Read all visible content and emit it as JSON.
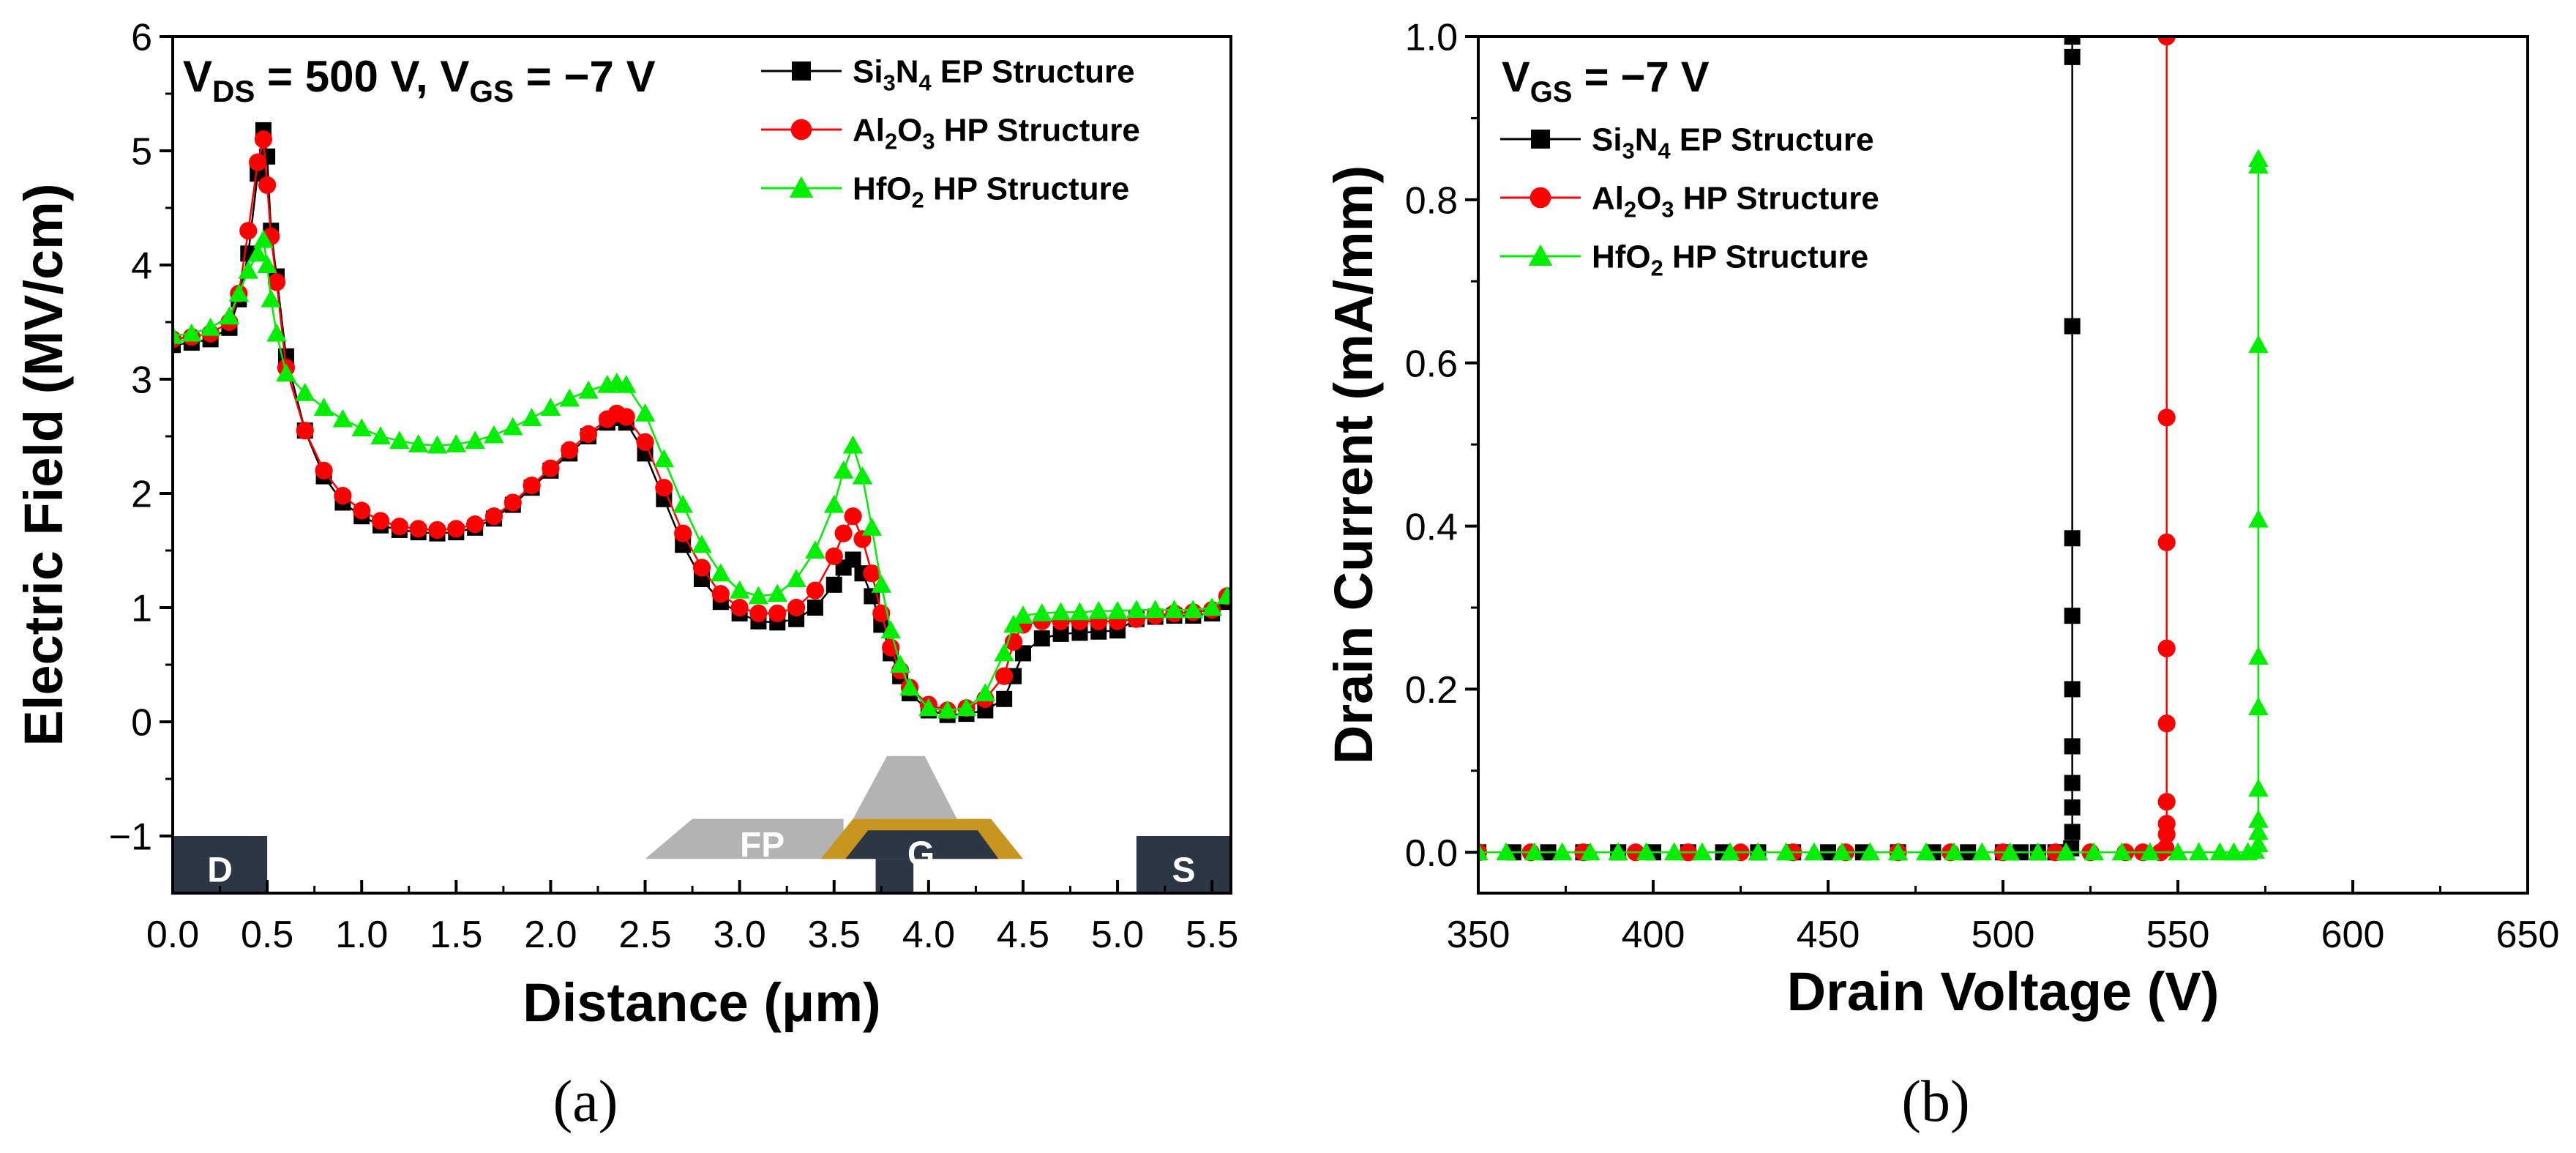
{
  "chart_data": [
    {
      "id": "a",
      "type": "scatter",
      "caption": "(a)",
      "title": "",
      "xlabel": "Distance (μm)",
      "ylabel": "Electric Field (MV/cm)",
      "xlim": [
        0,
        5.6
      ],
      "ylim": [
        -1.5,
        6
      ],
      "xticks": [
        0.0,
        0.5,
        1.0,
        1.5,
        2.0,
        2.5,
        3.0,
        3.5,
        4.0,
        4.5,
        5.0,
        5.5
      ],
      "xtick_labels": [
        "0.0",
        "0.5",
        "1.0",
        "1.5",
        "2.0",
        "2.5",
        "3.0",
        "3.5",
        "4.0",
        "4.5",
        "5.0",
        "5.5"
      ],
      "yticks": [
        -1,
        0,
        1,
        2,
        3,
        4,
        5,
        6
      ],
      "ytick_labels": [
        "−1",
        "0",
        "1",
        "2",
        "3",
        "4",
        "5",
        "6"
      ],
      "annotation": {
        "main": "V",
        "sub1": "DS",
        "mid": " = 500 V, V",
        "sub2": "GS",
        "tail": " = −7 V"
      },
      "structure_labels": {
        "drain": "D",
        "field_plate": "FP",
        "gate": "G",
        "source": "S"
      },
      "series": [
        {
          "name": "Si3N4 EP Structure",
          "legend": {
            "a": "Si",
            "sub1": "3",
            "b": "N",
            "sub2": "4",
            "c": " EP Structure"
          },
          "color": "#000000",
          "marker": "square",
          "x": [
            0.0,
            0.1,
            0.2,
            0.3,
            0.35,
            0.4,
            0.45,
            0.48,
            0.5,
            0.52,
            0.55,
            0.6,
            0.7,
            0.8,
            0.9,
            1.0,
            1.1,
            1.2,
            1.3,
            1.4,
            1.5,
            1.6,
            1.7,
            1.8,
            1.9,
            2.0,
            2.1,
            2.2,
            2.3,
            2.35,
            2.4,
            2.5,
            2.6,
            2.7,
            2.8,
            2.9,
            3.0,
            3.1,
            3.2,
            3.3,
            3.4,
            3.5,
            3.55,
            3.6,
            3.65,
            3.7,
            3.75,
            3.8,
            3.85,
            3.9,
            4.0,
            4.1,
            4.2,
            4.3,
            4.4,
            4.45,
            4.5,
            4.6,
            4.7,
            4.8,
            4.9,
            5.0,
            5.1,
            5.2,
            5.3,
            5.4,
            5.5,
            5.58
          ],
          "y": [
            3.3,
            3.32,
            3.35,
            3.45,
            3.7,
            4.1,
            4.8,
            5.18,
            4.95,
            4.3,
            3.9,
            3.2,
            2.55,
            2.15,
            1.92,
            1.8,
            1.72,
            1.68,
            1.66,
            1.65,
            1.66,
            1.7,
            1.78,
            1.9,
            2.05,
            2.2,
            2.35,
            2.5,
            2.62,
            2.66,
            2.62,
            2.35,
            1.95,
            1.55,
            1.25,
            1.05,
            0.95,
            0.88,
            0.87,
            0.9,
            1.0,
            1.2,
            1.35,
            1.42,
            1.3,
            1.1,
            0.85,
            0.6,
            0.4,
            0.25,
            0.1,
            0.06,
            0.07,
            0.1,
            0.2,
            0.4,
            0.6,
            0.73,
            0.77,
            0.78,
            0.79,
            0.8,
            0.9,
            0.92,
            0.93,
            0.93,
            0.95,
            1.05
          ]
        },
        {
          "name": "Al2O3 HP Structure",
          "legend": {
            "a": "Al",
            "sub1": "2",
            "b": "O",
            "sub2": "3",
            "c": " HP Structure"
          },
          "color": "#ff0000",
          "marker": "circle",
          "x": [
            0.0,
            0.1,
            0.2,
            0.3,
            0.35,
            0.4,
            0.45,
            0.48,
            0.5,
            0.52,
            0.55,
            0.6,
            0.7,
            0.8,
            0.9,
            1.0,
            1.1,
            1.2,
            1.3,
            1.4,
            1.5,
            1.6,
            1.7,
            1.8,
            1.9,
            2.0,
            2.1,
            2.2,
            2.3,
            2.35,
            2.4,
            2.5,
            2.6,
            2.7,
            2.8,
            2.9,
            3.0,
            3.1,
            3.2,
            3.3,
            3.4,
            3.5,
            3.55,
            3.6,
            3.65,
            3.7,
            3.75,
            3.8,
            3.85,
            3.9,
            4.0,
            4.1,
            4.2,
            4.3,
            4.4,
            4.45,
            4.5,
            4.6,
            4.7,
            4.8,
            4.9,
            5.0,
            5.1,
            5.2,
            5.3,
            5.4,
            5.5,
            5.58
          ],
          "y": [
            3.35,
            3.37,
            3.4,
            3.5,
            3.75,
            4.3,
            4.9,
            5.1,
            4.7,
            4.25,
            3.85,
            3.1,
            2.55,
            2.2,
            1.98,
            1.85,
            1.76,
            1.71,
            1.69,
            1.68,
            1.69,
            1.73,
            1.8,
            1.92,
            2.07,
            2.22,
            2.38,
            2.52,
            2.65,
            2.7,
            2.67,
            2.45,
            2.05,
            1.65,
            1.35,
            1.12,
            1.0,
            0.95,
            0.95,
            1.0,
            1.15,
            1.45,
            1.65,
            1.8,
            1.6,
            1.3,
            0.95,
            0.65,
            0.45,
            0.3,
            0.15,
            0.1,
            0.12,
            0.2,
            0.4,
            0.7,
            0.85,
            0.88,
            0.88,
            0.88,
            0.88,
            0.88,
            0.9,
            0.93,
            0.95,
            0.96,
            0.98,
            1.1
          ]
        },
        {
          "name": "HfO2 HP Structure",
          "legend": {
            "a": "HfO",
            "sub1": "2",
            "b": "",
            "sub2": "",
            "c": " HP Structure"
          },
          "color": "#00ee00",
          "marker": "triangle",
          "x": [
            0.0,
            0.1,
            0.2,
            0.3,
            0.35,
            0.4,
            0.45,
            0.48,
            0.5,
            0.52,
            0.55,
            0.6,
            0.7,
            0.8,
            0.9,
            1.0,
            1.1,
            1.2,
            1.3,
            1.4,
            1.5,
            1.6,
            1.7,
            1.8,
            1.9,
            2.0,
            2.1,
            2.2,
            2.3,
            2.35,
            2.4,
            2.5,
            2.6,
            2.7,
            2.8,
            2.9,
            3.0,
            3.1,
            3.2,
            3.3,
            3.4,
            3.5,
            3.55,
            3.6,
            3.65,
            3.7,
            3.75,
            3.8,
            3.85,
            3.9,
            4.0,
            4.1,
            4.2,
            4.3,
            4.4,
            4.45,
            4.5,
            4.6,
            4.7,
            4.8,
            4.9,
            5.0,
            5.1,
            5.2,
            5.3,
            5.4,
            5.5,
            5.58
          ],
          "y": [
            3.38,
            3.4,
            3.45,
            3.55,
            3.75,
            3.95,
            4.1,
            4.22,
            4.0,
            3.7,
            3.4,
            3.05,
            2.88,
            2.75,
            2.65,
            2.57,
            2.5,
            2.46,
            2.43,
            2.42,
            2.43,
            2.46,
            2.51,
            2.58,
            2.66,
            2.75,
            2.83,
            2.9,
            2.95,
            2.97,
            2.95,
            2.7,
            2.3,
            1.9,
            1.55,
            1.3,
            1.15,
            1.1,
            1.12,
            1.25,
            1.5,
            1.9,
            2.2,
            2.42,
            2.15,
            1.7,
            1.2,
            0.8,
            0.5,
            0.3,
            0.12,
            0.1,
            0.12,
            0.25,
            0.6,
            0.85,
            0.93,
            0.95,
            0.96,
            0.96,
            0.97,
            0.97,
            0.98,
            0.98,
            0.98,
            0.98,
            1.0,
            1.1
          ]
        }
      ]
    },
    {
      "id": "b",
      "type": "scatter",
      "caption": "(b)",
      "title": "",
      "xlabel": "Drain Voltage (V)",
      "ylabel": "Drain Current (mA/mm)",
      "xlim": [
        350,
        650
      ],
      "ylim": [
        -0.05,
        1.0
      ],
      "xticks": [
        350,
        400,
        450,
        500,
        550,
        600,
        650
      ],
      "xtick_labels": [
        "350",
        "400",
        "450",
        "500",
        "550",
        "600",
        "650"
      ],
      "yticks": [
        0.0,
        0.2,
        0.4,
        0.6,
        0.8,
        1.0
      ],
      "ytick_labels": [
        "0.0",
        "0.2",
        "0.4",
        "0.6",
        "0.8",
        "1.0"
      ],
      "annotation": {
        "main": "V",
        "sub1": "GS",
        "mid": " = −7 V",
        "sub2": "",
        "tail": ""
      },
      "series": [
        {
          "name": "Si3N4 EP Structure",
          "legend": {
            "a": "Si",
            "sub1": "3",
            "b": "N",
            "sub2": "4",
            "c": " EP Structure"
          },
          "color": "#000000",
          "marker": "square",
          "x": [
            350,
            360,
            370,
            380,
            390,
            400,
            410,
            420,
            430,
            440,
            450,
            460,
            470,
            480,
            490,
            500,
            505,
            510,
            515,
            518,
            519.5,
            519.8,
            519.8,
            519.8,
            519.8,
            519.8,
            519.8,
            519.8,
            519.8,
            519.8,
            519.8
          ],
          "y": [
            0.0,
            0.0,
            0.0,
            0.0,
            0.0,
            0.0,
            0.0,
            0.0,
            0.0,
            0.0,
            0.0,
            0.0,
            0.0,
            0.0,
            0.0,
            0.0,
            0.0,
            0.0,
            0.0,
            0.0,
            0.005,
            0.025,
            0.055,
            0.085,
            0.13,
            0.2,
            0.29,
            0.385,
            0.645,
            0.975,
            1.0
          ]
        },
        {
          "name": "Al2O3 HP Structure",
          "legend": {
            "a": "Al",
            "sub1": "2",
            "b": "O",
            "sub2": "3",
            "c": " HP Structure"
          },
          "color": "#ff0000",
          "marker": "circle",
          "x": [
            350,
            365,
            380,
            395,
            410,
            425,
            440,
            455,
            470,
            485,
            500,
            515,
            525,
            535,
            540,
            545,
            546.5,
            546.8,
            546.8,
            546.8,
            546.8,
            546.8,
            546.8,
            546.8,
            546.8
          ],
          "y": [
            0.0,
            0.0,
            0.0,
            0.0,
            0.0,
            0.0,
            0.0,
            0.0,
            0.0,
            0.0,
            0.0,
            0.0,
            0.0,
            0.0,
            0.0,
            0.0,
            0.005,
            0.022,
            0.035,
            0.062,
            0.158,
            0.25,
            0.38,
            0.533,
            1.0
          ]
        },
        {
          "name": "HfO2 HP Structure",
          "legend": {
            "a": "HfO",
            "sub1": "2",
            "b": "",
            "sub2": "",
            "c": " HP Structure"
          },
          "color": "#00ee00",
          "marker": "triangle",
          "x": [
            350,
            358,
            366,
            374,
            382,
            390,
            398,
            406,
            414,
            422,
            430,
            438,
            446,
            454,
            462,
            470,
            478,
            486,
            494,
            502,
            510,
            518,
            526,
            534,
            542,
            550,
            556,
            562,
            566,
            570,
            572,
            573,
            573,
            573,
            573,
            573,
            573,
            573,
            573,
            573,
            573
          ],
          "y": [
            0.0,
            0.0,
            0.0,
            0.0,
            0.0,
            0.0,
            0.0,
            0.0,
            0.0,
            0.0,
            0.0,
            0.0,
            0.0,
            0.0,
            0.0,
            0.0,
            0.0,
            0.0,
            0.0,
            0.0,
            0.0,
            0.0,
            0.0,
            0.0,
            0.0,
            0.0,
            0.0,
            0.0,
            0.0,
            0.0,
            0.002,
            0.01,
            0.025,
            0.04,
            0.078,
            0.178,
            0.24,
            0.408,
            0.622,
            0.842,
            0.85
          ]
        }
      ]
    }
  ]
}
